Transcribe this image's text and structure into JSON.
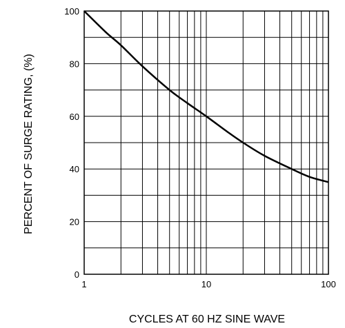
{
  "chart_data": {
    "type": "line",
    "xlabel": "CYCLES AT 60 HZ SINE WAVE",
    "ylabel": "PERCENT OF SURGE RATING, (%)",
    "xscale": "log",
    "xlim": [
      1,
      100
    ],
    "ylim": [
      0,
      100
    ],
    "xticks": [
      1,
      10,
      100
    ],
    "yticks": [
      0,
      20,
      40,
      60,
      80,
      100
    ],
    "grid": true,
    "series": [
      {
        "x": [
          1,
          1.5,
          2,
          3,
          5,
          7,
          10,
          15,
          20,
          30,
          50,
          70,
          100
        ],
        "y": [
          100,
          92,
          87,
          79,
          70,
          65,
          60,
          54,
          50,
          45,
          40,
          37,
          35
        ]
      }
    ]
  }
}
